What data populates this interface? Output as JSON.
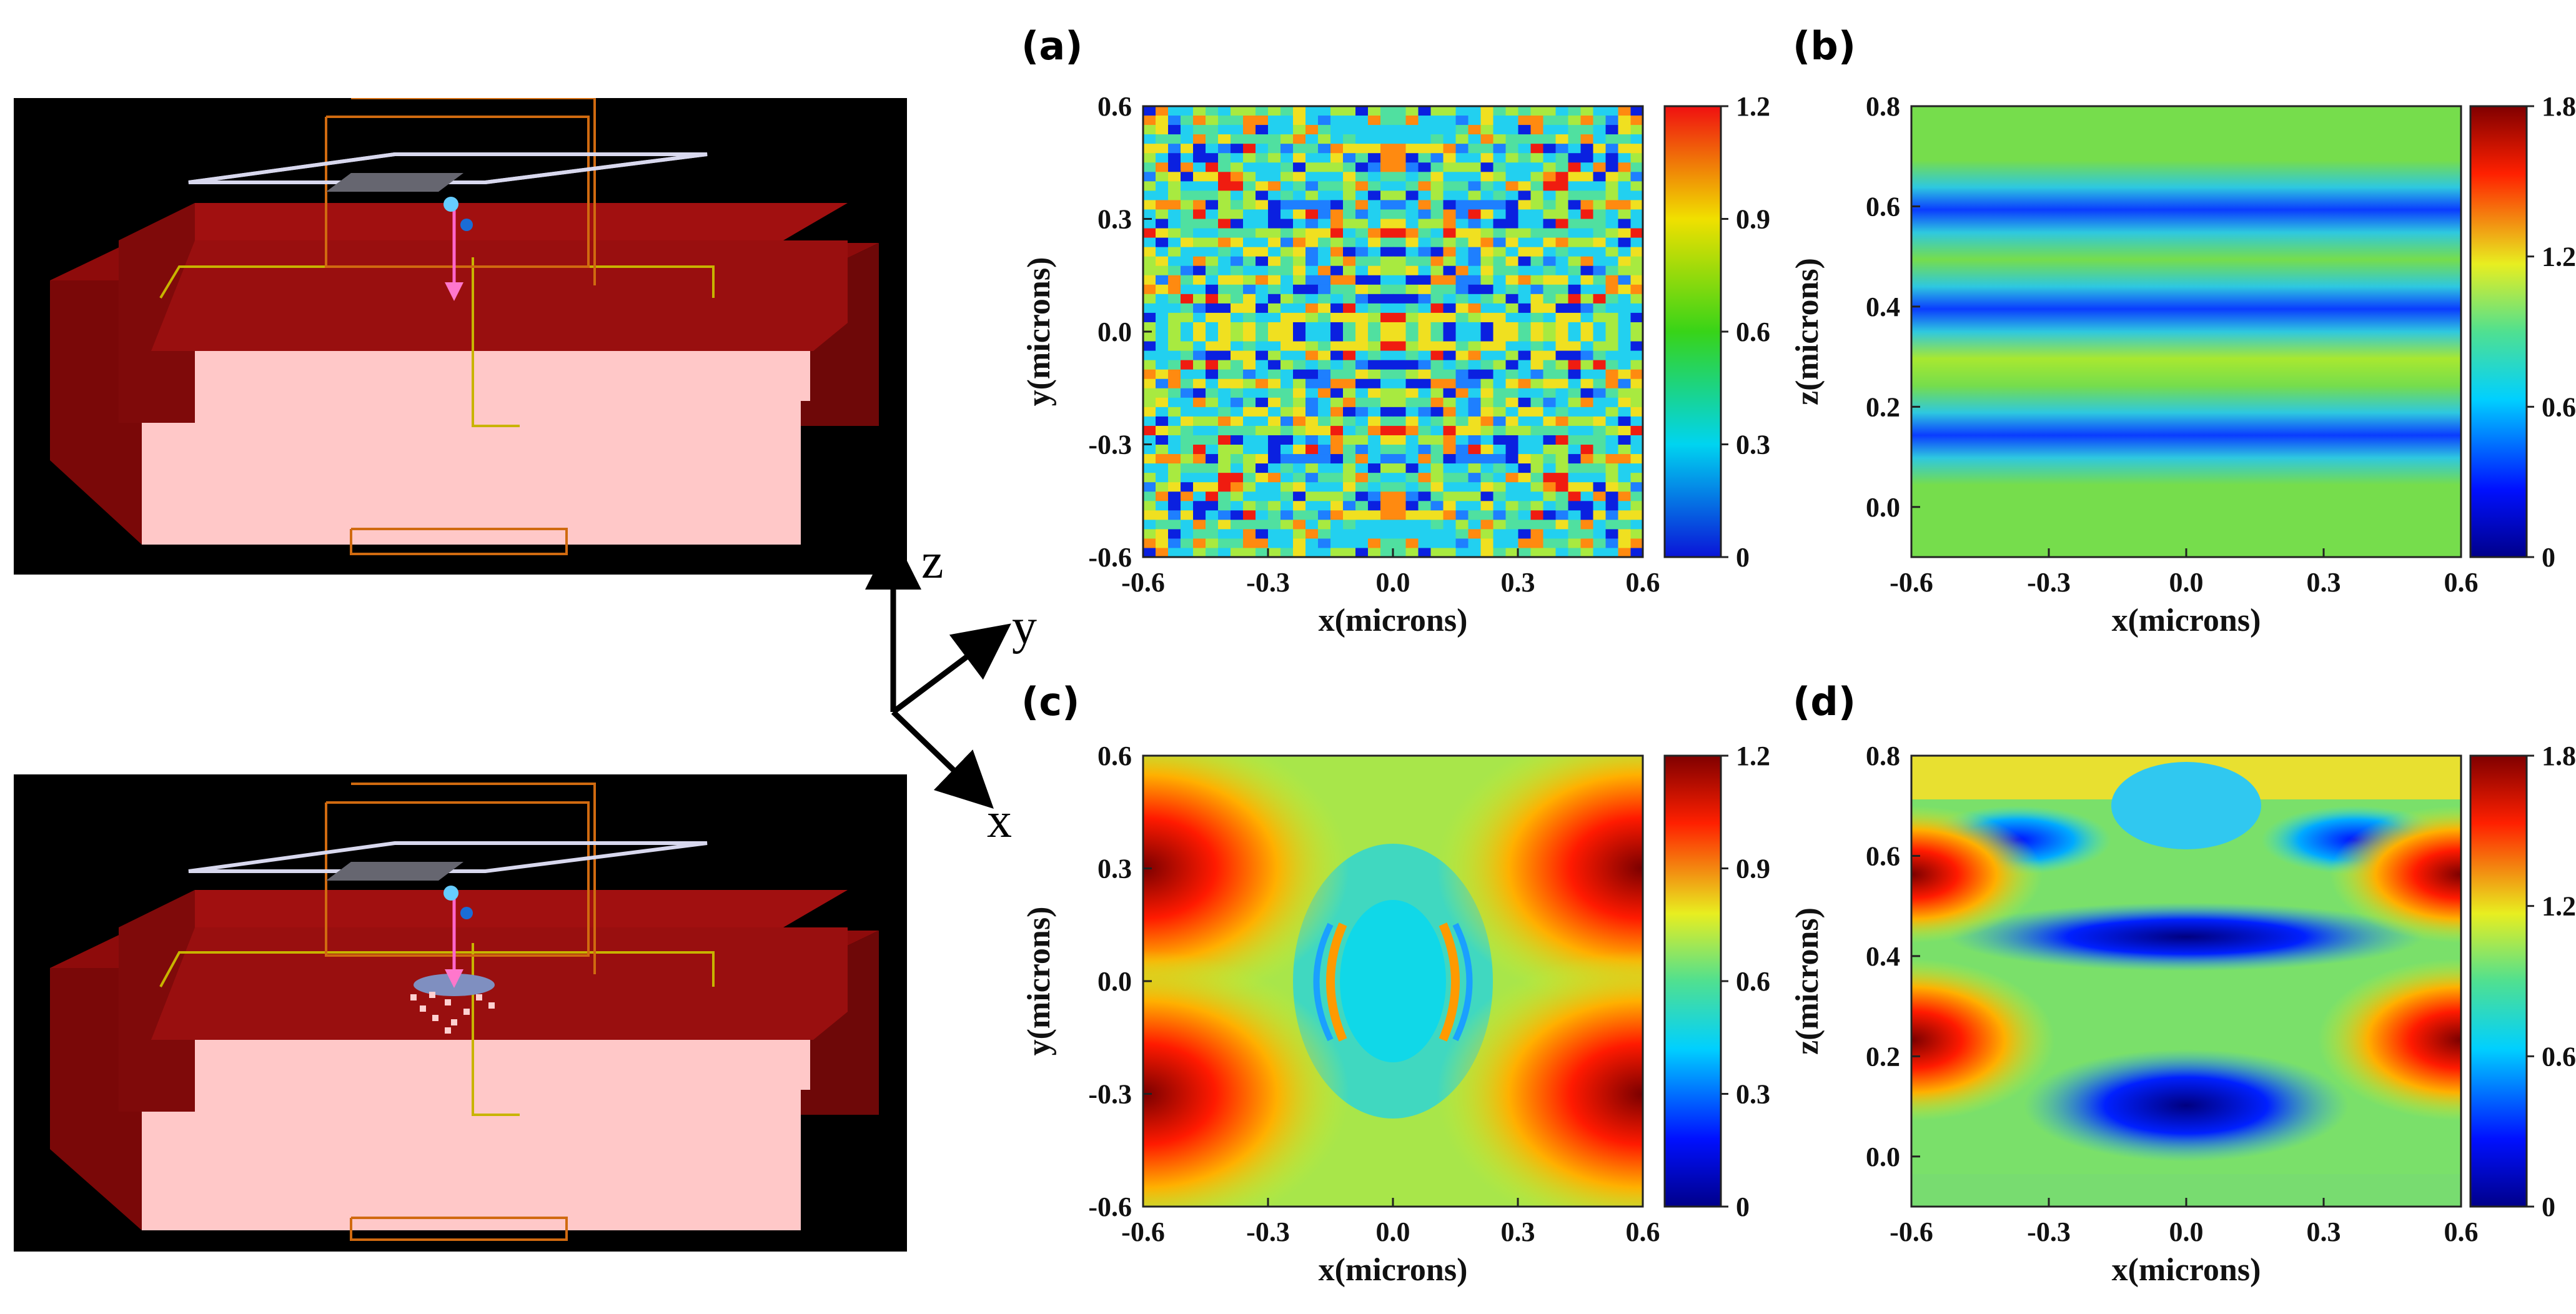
{
  "panel_labels": {
    "a": "(a)",
    "b": "(b)",
    "c": "(c)",
    "d": "(d)"
  },
  "triad": {
    "z": "z",
    "y": "y",
    "x": "x"
  },
  "simulation_views": [
    {
      "name": "structure-without-nanoparticles",
      "nanoparticles": false
    },
    {
      "name": "structure-with-nanoparticles",
      "nanoparticles": true
    }
  ],
  "chart_data": [
    {
      "id": "a",
      "type": "heatmap",
      "title": "(a)",
      "xlabel": "x(microns)",
      "ylabel": "y(microns)",
      "xlim": [
        -0.6,
        0.6
      ],
      "ylim": [
        -0.6,
        0.6
      ],
      "xticks": [
        -0.6,
        -0.3,
        0.0,
        0.3,
        0.6
      ],
      "yticks": [
        -0.6,
        -0.3,
        0.0,
        0.3,
        0.6
      ],
      "colorbar": {
        "min": 0,
        "max": 1.2,
        "ticks": [
          0,
          0.3,
          0.6,
          0.9,
          1.2
        ],
        "colormap": "rainbow"
      },
      "tick_labels": {
        "x": [
          "-0.6",
          "-0.3",
          "0.0",
          "0.3",
          "0.6"
        ],
        "y": [
          "-0.6",
          "-0.3",
          "0.0",
          "0.3",
          "0.6"
        ],
        "cb": [
          "0",
          "0.3",
          "0.6",
          "0.9",
          "1.2"
        ]
      },
      "field_pattern": "speckle"
    },
    {
      "id": "b",
      "type": "heatmap",
      "title": "(b)",
      "xlabel": "x(microns)",
      "ylabel": "z(microns)",
      "xlim": [
        -0.6,
        0.6
      ],
      "ylim": [
        -0.1,
        0.8
      ],
      "xticks": [
        -0.6,
        -0.3,
        0.0,
        0.3,
        0.6
      ],
      "yticks": [
        0.0,
        0.2,
        0.4,
        0.6,
        0.8
      ],
      "colorbar": {
        "min": 0,
        "max": 1.8,
        "ticks": [
          0,
          0.6,
          1.2,
          1.8
        ],
        "colormap": "jet"
      },
      "tick_labels": {
        "x": [
          "-0.6",
          "-0.3",
          "0.0",
          "0.3",
          "0.6"
        ],
        "y": [
          "0.0",
          "0.2",
          "0.4",
          "0.6",
          "0.8"
        ],
        "cb": [
          "0",
          "0.6",
          "1.2",
          "1.8"
        ]
      },
      "field_pattern": "standing-wave-bands"
    },
    {
      "id": "c",
      "type": "heatmap",
      "title": "(c)",
      "xlabel": "x(microns)",
      "ylabel": "y(microns)",
      "xlim": [
        -0.6,
        0.6
      ],
      "ylim": [
        -0.6,
        0.6
      ],
      "xticks": [
        -0.6,
        -0.3,
        0.0,
        0.3,
        0.6
      ],
      "yticks": [
        -0.6,
        -0.3,
        0.0,
        0.3,
        0.6
      ],
      "colorbar": {
        "min": 0,
        "max": 1.2,
        "ticks": [
          0,
          0.3,
          0.6,
          0.9,
          1.2
        ],
        "colormap": "jet"
      },
      "tick_labels": {
        "x": [
          "-0.6",
          "-0.3",
          "0.0",
          "0.3",
          "0.6"
        ],
        "y": [
          "-0.6",
          "-0.3",
          "0.0",
          "0.3",
          "0.6"
        ],
        "cb": [
          "0",
          "0.3",
          "0.6",
          "0.9",
          "1.2"
        ]
      },
      "field_pattern": "corner-hotspots"
    },
    {
      "id": "d",
      "type": "heatmap",
      "title": "(d)",
      "xlabel": "x(microns)",
      "ylabel": "z(microns)",
      "xlim": [
        -0.6,
        0.6
      ],
      "ylim": [
        -0.1,
        0.8
      ],
      "xticks": [
        -0.6,
        -0.3,
        0.0,
        0.3,
        0.6
      ],
      "yticks": [
        0.0,
        0.2,
        0.4,
        0.6,
        0.8
      ],
      "colorbar": {
        "min": 0,
        "max": 1.8,
        "ticks": [
          0,
          0.6,
          1.2,
          1.8
        ],
        "colormap": "jet"
      },
      "tick_labels": {
        "x": [
          "-0.6",
          "-0.3",
          "0.0",
          "0.3",
          "0.6"
        ],
        "y": [
          "0.0",
          "0.2",
          "0.4",
          "0.6",
          "0.8"
        ],
        "cb": [
          "0",
          "0.6",
          "1.2",
          "1.8"
        ]
      },
      "field_pattern": "scattered-cross-section"
    }
  ]
}
